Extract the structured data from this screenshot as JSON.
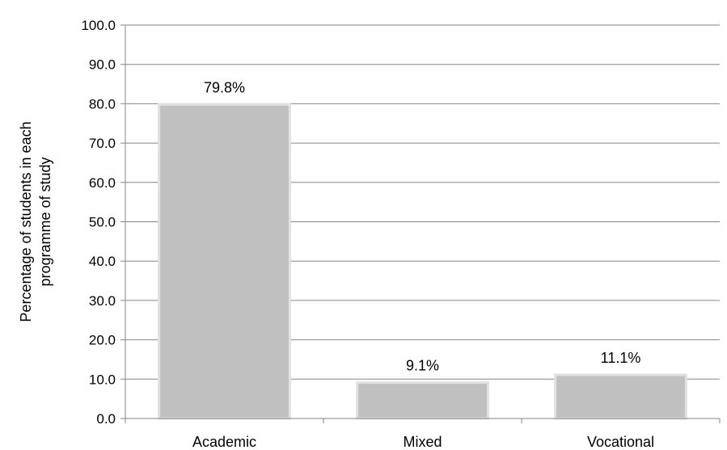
{
  "chart_data": {
    "type": "bar",
    "categories": [
      "Academic",
      "Mixed",
      "Vocational"
    ],
    "values": [
      79.8,
      9.1,
      11.1
    ],
    "data_labels": [
      "79.8%",
      "9.1%",
      "11.1%"
    ],
    "title": "",
    "xlabel": "",
    "ylabel_lines": [
      "Percentage of students in each",
      "programme of study"
    ],
    "ylim": [
      0,
      100
    ],
    "yticks": [
      "0.0",
      "10.0",
      "20.0",
      "30.0",
      "40.0",
      "50.0",
      "60.0",
      "70.0",
      "80.0",
      "90.0",
      "100.0"
    ],
    "grid": true,
    "legend": "none",
    "bar_color": "#c0c0c0",
    "bar_edge_color": "#e0e0e0",
    "grid_color": "#868686"
  }
}
